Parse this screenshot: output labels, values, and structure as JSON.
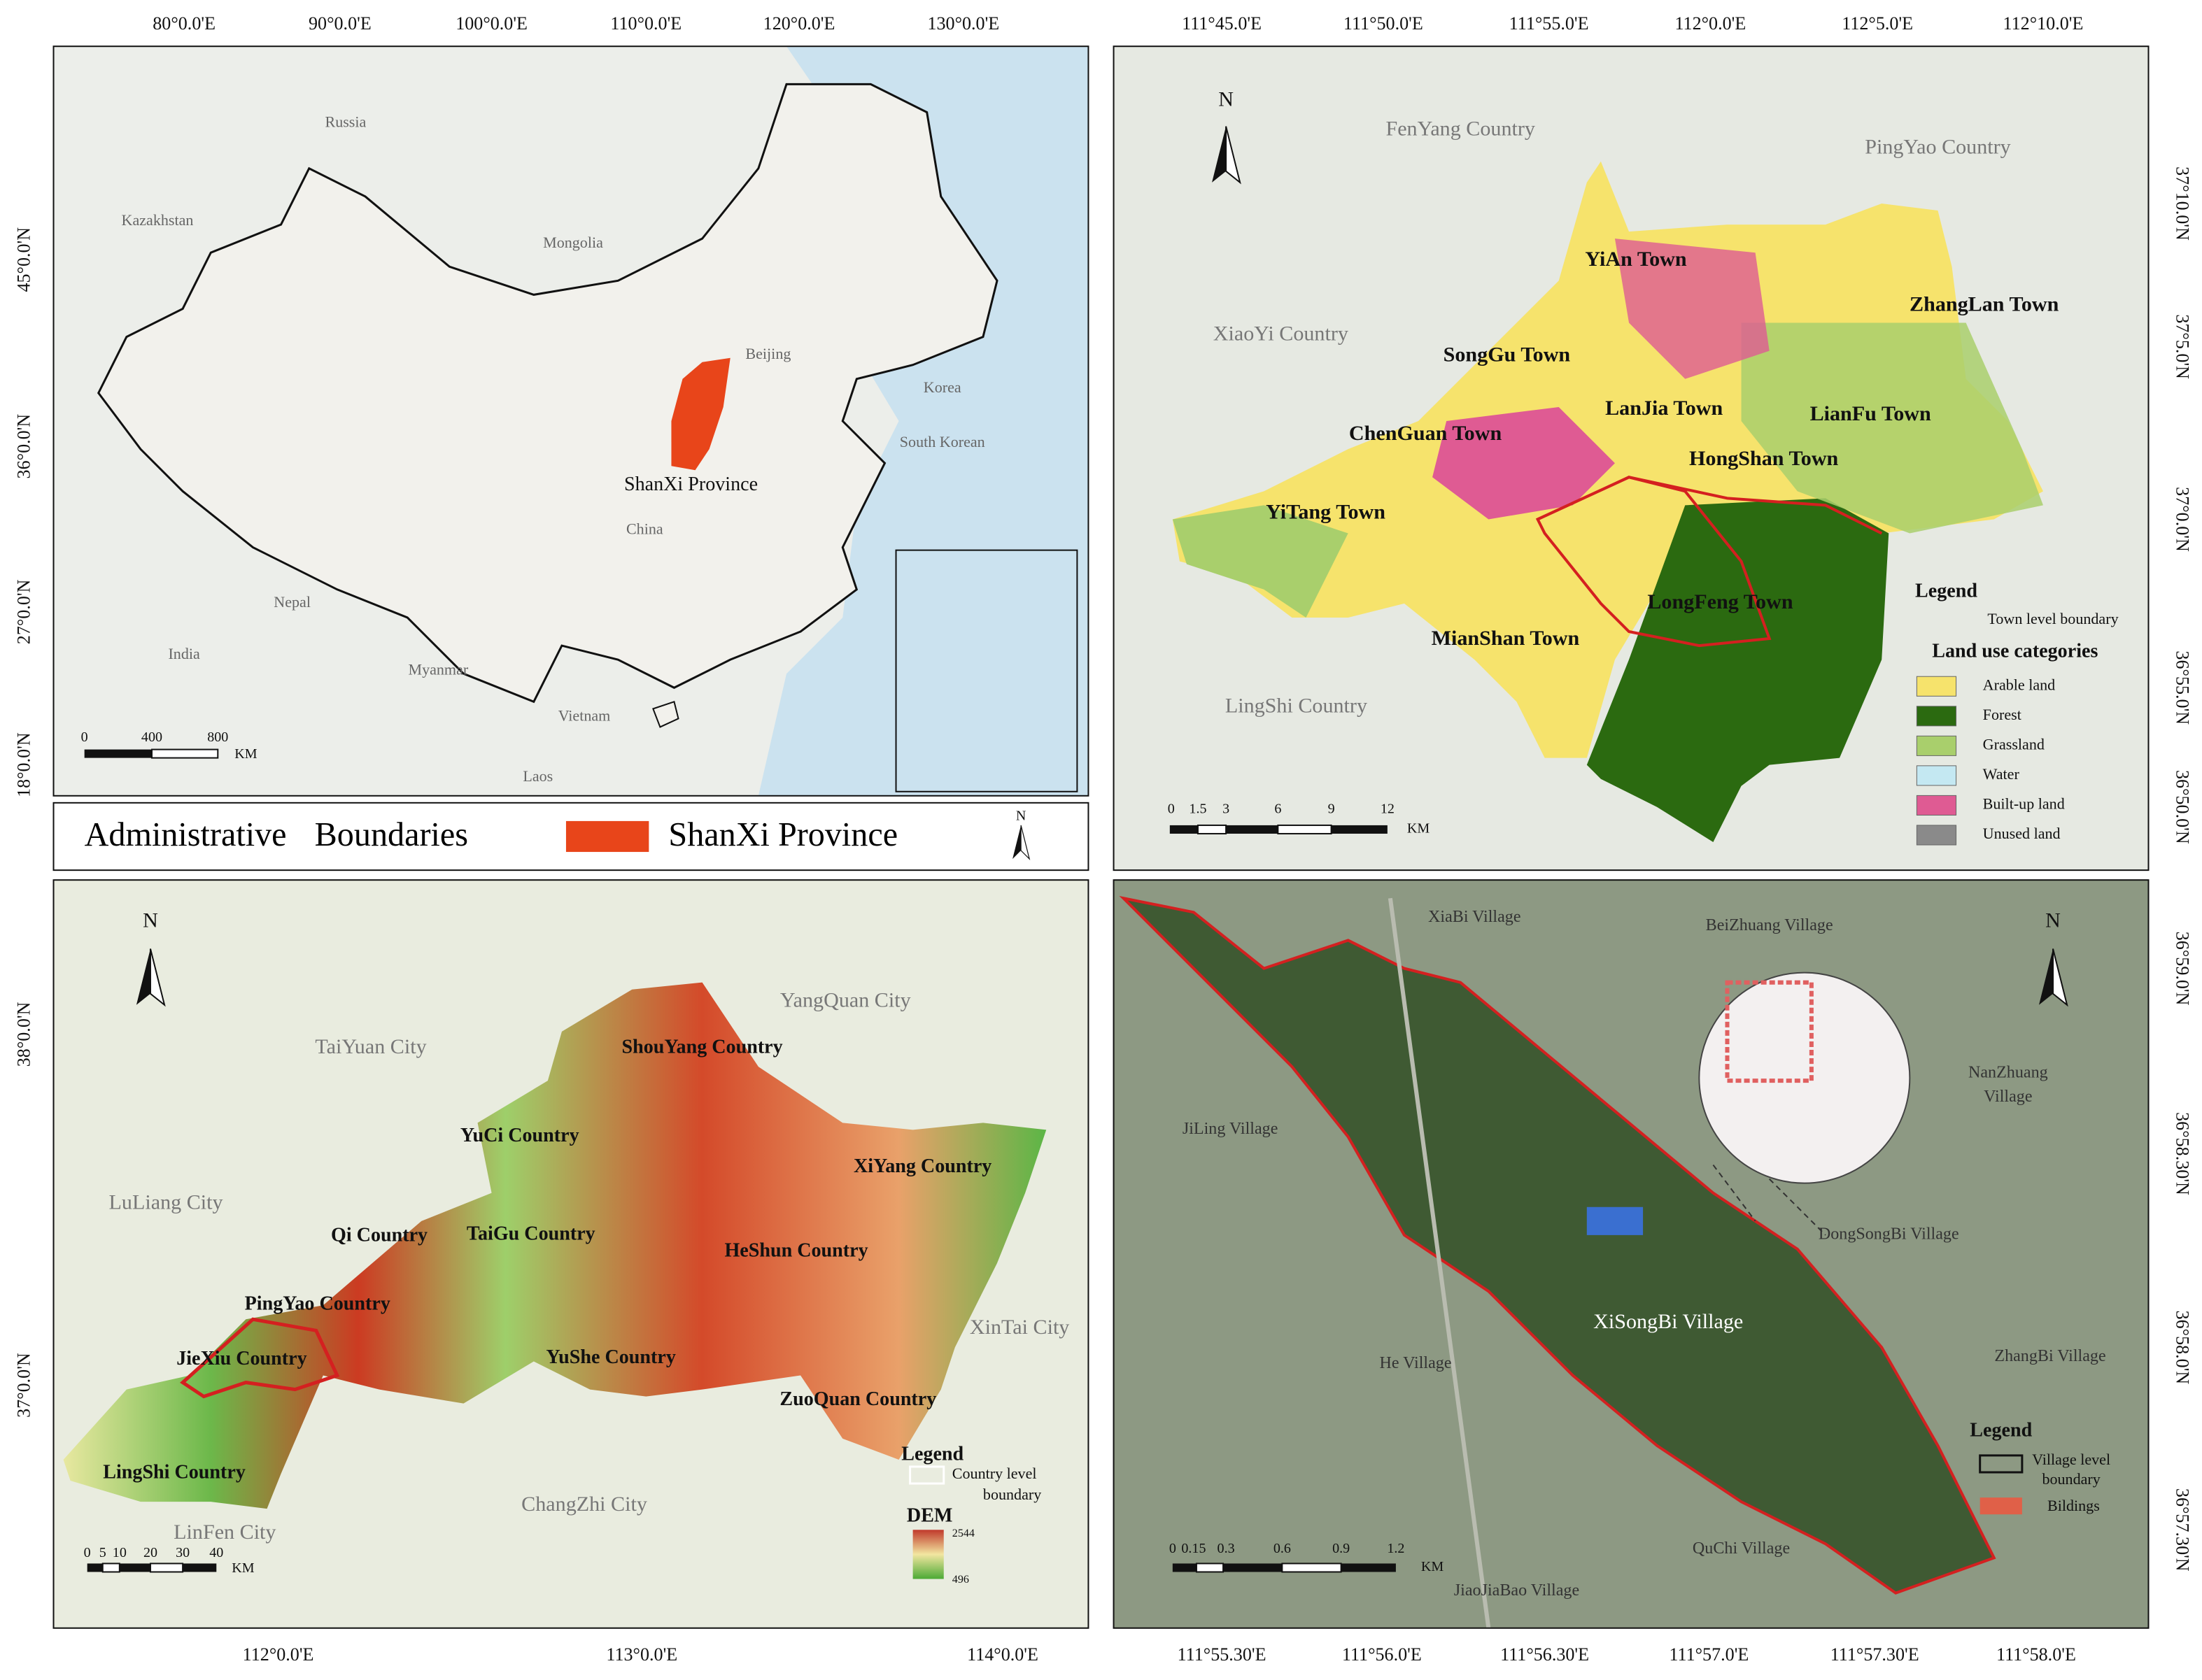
{
  "map_overview": {
    "x_ticks": [
      "80°0.0'E",
      "90°0.0'E",
      "100°0.0'E",
      "110°0.0'E",
      "120°0.0'E",
      "130°0.0'E"
    ],
    "y_ticks": [
      "45°0.0'N",
      "36°0.0'N",
      "27°0.0'N",
      "18°0.0'N"
    ],
    "places": [
      "Russia",
      "Kazakhstan",
      "Mongolia",
      "Beijing",
      "Korea",
      "South Korean",
      "China",
      "Nepal",
      "India",
      "Myanmar",
      "Vietnam",
      "Laos"
    ],
    "highlight": "ShanXi Province",
    "scale_bar": [
      "0",
      "400",
      "800",
      "KM"
    ]
  },
  "legend_bar": {
    "boundaries": "Administrative Boundaries",
    "province": "ShanXi Province",
    "north": "N"
  },
  "map_land_use": {
    "x_ticks": [
      "111°45.0'E",
      "111°50.0'E",
      "111°55.0'E",
      "112°0.0'E",
      "112°5.0'E",
      "112°10.0'E"
    ],
    "y_ticks": [
      "37°10.0'N",
      "37°5.0'N",
      "37°0.0'N",
      "36°55.0'N",
      "36°50.0'N"
    ],
    "north": "N",
    "counties": [
      "FenYang  Country",
      "PingYao  Country",
      "XiaoYi  Country",
      "LingShi  Country"
    ],
    "towns": [
      "YiAn Town",
      "ZhangLan  Town",
      "SongGu Town",
      "LanJia Town",
      "LianFu  Town",
      "ChenGuan Town",
      "HongShan  Town",
      "YiTang  Town",
      "LongFeng  Town",
      "MianShan Town"
    ],
    "legend": {
      "title": "Legend",
      "boundary": "Town level boundary",
      "categories_title": "Land use categories",
      "categories": [
        "Arable land",
        "Forest",
        "Grassland",
        "Water",
        "Built-up land",
        "Unused land"
      ],
      "colors": [
        "#f6e36c",
        "#2b6a10",
        "#a9cf6c",
        "#c4e8f2",
        "#df5b93",
        "#8a8a8a"
      ]
    },
    "scale_bar": [
      "0",
      "1.5",
      "3",
      "6",
      "9",
      "12",
      "KM"
    ]
  },
  "map_dem": {
    "x_ticks": [
      "112°0.0'E",
      "113°0.0'E",
      "114°0.0'E"
    ],
    "y_ticks": [
      "38°0.0'N",
      "37°0.0'N"
    ],
    "north": "N",
    "cities": [
      "YangQuan  City",
      "TaiYuan City",
      "LuLiang City",
      "XinTai  City",
      "ChangZhi City",
      "LinFen City"
    ],
    "counties": [
      "ShouYang Country",
      "YuCi Country",
      "XiYang Country",
      "Qi  Country",
      "TaiGu Country",
      "HeShun Country",
      "PingYao  Country",
      "JieXiu  Country",
      "YuShe Country",
      "ZuoQuan Country",
      "LingShi  Country"
    ],
    "legend": {
      "title": "Legend",
      "boundary": [
        "Country level",
        "boundary"
      ],
      "dem_title": "DEM",
      "dem_max": "2544",
      "dem_min": "496"
    },
    "scale_bar": [
      "0",
      "5",
      "10",
      "20",
      "30",
      "40",
      "KM"
    ]
  },
  "map_village": {
    "x_ticks": [
      "111°55.30'E",
      "111°56.0'E",
      "111°56.30'E",
      "111°57.0'E",
      "111°57.30'E",
      "111°58.0'E"
    ],
    "y_ticks": [
      "36°59.0'N",
      "36°58.30'N",
      "36°58.0'N",
      "36°57.30'N"
    ],
    "north": "N",
    "villages": [
      "XiaBi Village",
      "BeiZhuang Village",
      "JiLing Village",
      "DongSongBi Village",
      "ZhangBi Village",
      "He Village",
      "QuChi Village",
      "JiaoJiaBao Village"
    ],
    "village_two_line": [
      "NanZhuang",
      "Village"
    ],
    "study_village": "XiSongBi  Village",
    "legend": {
      "title": "Legend",
      "boundary": [
        "Village level",
        "boundary"
      ],
      "buildings": "Bildings"
    },
    "scale_bar": [
      "0",
      "0.15",
      "0.3",
      "0.6",
      "0.9",
      "1.2",
      "KM"
    ]
  }
}
